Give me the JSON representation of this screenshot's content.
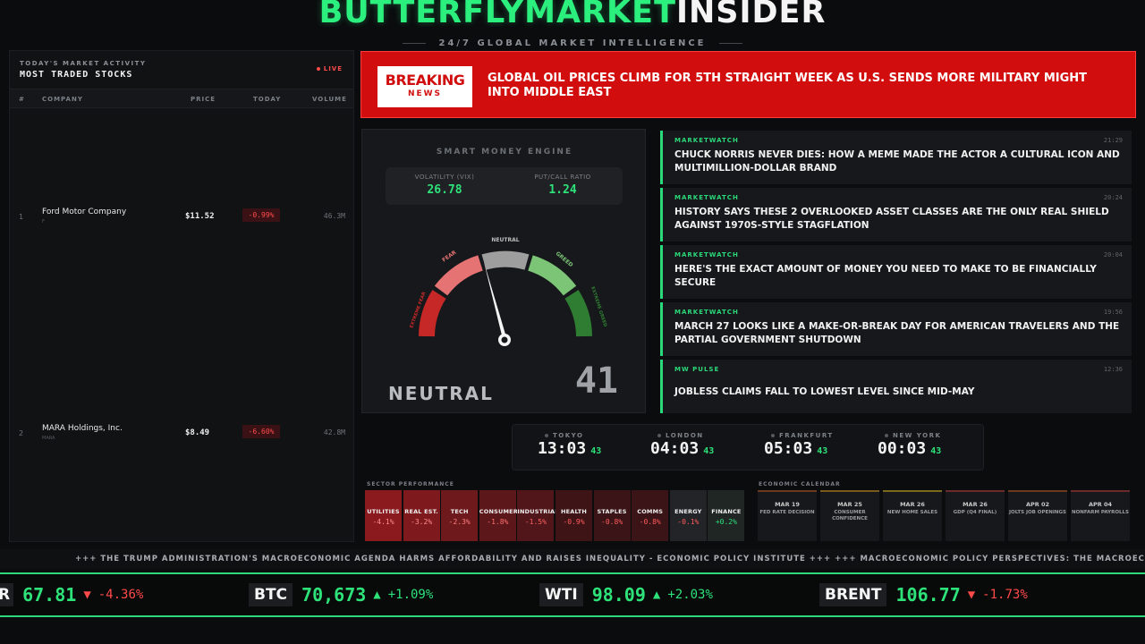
{
  "header": {
    "brand_green": "BUTTERFLYMARKET",
    "brand_white": "INSIDER",
    "tagline": "24/7 GLOBAL MARKET INTELLIGENCE"
  },
  "stocks": {
    "subtitle": "TODAY'S MARKET ACTIVITY",
    "title": "MOST TRADED STOCKS",
    "live": "LIVE",
    "columns": {
      "num": "#",
      "company": "COMPANY",
      "price": "PRICE",
      "today": "TODAY",
      "volume": "VOLUME"
    },
    "rows": [
      {
        "num": "1",
        "company": "Ford Motor Company",
        "ticker": "F",
        "price": "$11.52",
        "change": "-0.99%",
        "volume": "46.3M"
      },
      {
        "num": "2",
        "company": "MARA Holdings, Inc.",
        "ticker": "MARA",
        "price": "$8.49",
        "change": "-6.60%",
        "volume": "42.8M"
      }
    ]
  },
  "breaking": {
    "badge_line1": "BREAKING",
    "badge_line2": "NEWS",
    "headline": "GLOBAL OIL PRICES CLIMB FOR 5TH STRAIGHT WEEK AS U.S. SENDS MORE MILITARY MIGHT INTO MIDDLE EAST"
  },
  "engine": {
    "title": "SMART MONEY ENGINE",
    "vix_label": "VOLATILITY (VIX)",
    "vix_value": "26.78",
    "pcr_label": "PUT/CALL RATIO",
    "pcr_value": "1.24",
    "zones": {
      "extreme_fear": "EXTREME FEAR",
      "fear": "FEAR",
      "neutral": "NEUTRAL",
      "greed": "GREED",
      "extreme_greed": "EXTREME GREED"
    },
    "sentiment": "NEUTRAL",
    "score": "41"
  },
  "news": [
    {
      "source": "MARKETWATCH",
      "time": "21:29",
      "headline": "CHUCK NORRIS NEVER DIES: HOW A MEME MADE THE ACTOR A CULTURAL ICON AND MULTIMILLION-DOLLAR BRAND"
    },
    {
      "source": "MARKETWATCH",
      "time": "20:24",
      "headline": "HISTORY SAYS THESE 2 OVERLOOKED ASSET CLASSES ARE THE ONLY REAL SHIELD AGAINST 1970S-STYLE STAGFLATION"
    },
    {
      "source": "MARKETWATCH",
      "time": "20:04",
      "headline": "HERE'S THE EXACT AMOUNT OF MONEY YOU NEED TO MAKE TO BE FINANCIALLY SECURE"
    },
    {
      "source": "MARKETWATCH",
      "time": "19:56",
      "headline": "MARCH 27 LOOKS LIKE A MAKE-OR-BREAK DAY FOR AMERICAN TRAVELERS AND THE PARTIAL GOVERNMENT SHUTDOWN"
    },
    {
      "source": "MW PULSE",
      "time": "12:36",
      "headline": "JOBLESS CLAIMS FALL TO LOWEST LEVEL SINCE MID-MAY"
    }
  ],
  "clocks": [
    {
      "city": "TOKYO",
      "hm": "13:03",
      "ss": "43"
    },
    {
      "city": "LONDON",
      "hm": "04:03",
      "ss": "43"
    },
    {
      "city": "FRANKFURT",
      "hm": "05:03",
      "ss": "43"
    },
    {
      "city": "NEW YORK",
      "hm": "00:03",
      "ss": "43"
    }
  ],
  "sectors": {
    "label": "SECTOR PERFORMANCE",
    "items": [
      {
        "name": "UTILITIES",
        "value": "-4.1%",
        "bg": "#8a1a1e",
        "color": "#ff8a8a"
      },
      {
        "name": "REAL EST.",
        "value": "-3.2%",
        "bg": "#7e1a1e",
        "color": "#ff8a8a"
      },
      {
        "name": "TECH",
        "value": "-2.3%",
        "bg": "#6e1a1d",
        "color": "#ff7d7d"
      },
      {
        "name": "CONSUMER",
        "value": "-1.8%",
        "bg": "#5c171a",
        "color": "#ff6d6d"
      },
      {
        "name": "INDUSTRIAL",
        "value": "-1.5%",
        "bg": "#511619",
        "color": "#ff6060"
      },
      {
        "name": "HEALTH",
        "value": "-0.9%",
        "bg": "#3e1416",
        "color": "#ff5a5a"
      },
      {
        "name": "STAPLES",
        "value": "-0.8%",
        "bg": "#3a1416",
        "color": "#ff5a5a"
      },
      {
        "name": "COMMS",
        "value": "-0.8%",
        "bg": "#3a1416",
        "color": "#ff5a5a"
      },
      {
        "name": "ENERGY",
        "value": "-0.1%",
        "bg": "#232427",
        "color": "#ff5a5a"
      },
      {
        "name": "FINANCE",
        "value": "+0.2%",
        "bg": "#1f2624",
        "color": "#2ee27a"
      }
    ]
  },
  "calendar": {
    "label": "ECONOMIC CALENDAR",
    "items": [
      {
        "date": "MAR 19",
        "event": "FED RATE DECISION",
        "accent": "#6b3a1c"
      },
      {
        "date": "MAR 25",
        "event": "CONSUMER CONFIDENCE",
        "accent": "#7a5a1c"
      },
      {
        "date": "MAR 26",
        "event": "NEW HOME SALES",
        "accent": "#7a6a1c"
      },
      {
        "date": "MAR 26",
        "event": "GDP (Q4 FINAL)",
        "accent": "#6b2a2a"
      },
      {
        "date": "APR 02",
        "event": "JOLTS JOB OPENINGS",
        "accent": "#6b3a1c"
      },
      {
        "date": "APR 04",
        "event": "NONFARM PAYROLLS",
        "accent": "#6b2a2a"
      }
    ]
  },
  "crawl": "+++ THE TRUMP ADMINISTRATION'S MACROECONOMIC AGENDA HARMS AFFORDABILITY AND RAISES INEQUALITY - ECONOMIC POLICY INSTITUTE +++ +++ MACROECONOMIC POLICY PERSPECTIVES: THE MACROECONOMIC",
  "tape": [
    {
      "symbol": "",
      "price": "67.81",
      "arrow": "▼",
      "change": "-4.36%",
      "dir": "down",
      "partial_prefix": "R"
    },
    {
      "symbol": "BTC",
      "price": "70,673",
      "arrow": "▲",
      "change": "+1.09%",
      "dir": "up"
    },
    {
      "symbol": "WTI",
      "price": "98.09",
      "arrow": "▲",
      "change": "+2.03%",
      "dir": "up"
    },
    {
      "symbol": "BRENT",
      "price": "106.77",
      "arrow": "▼",
      "change": "-1.73%",
      "dir": "down"
    }
  ],
  "colors": {
    "accent_green": "#2bd97a",
    "breaking_red": "#d10d0d",
    "loss_red": "#ff4a4a"
  }
}
